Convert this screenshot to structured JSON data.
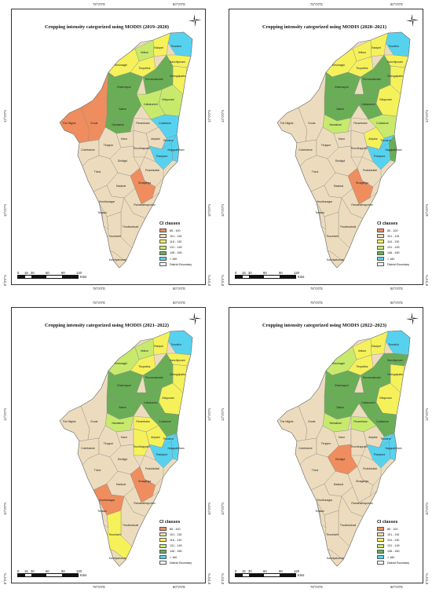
{
  "palette": {
    "c1": "#ef8d5e",
    "c2": "#ecdcbd",
    "c3": "#f5f15a",
    "c4": "#c7ea6d",
    "c5": "#6aad57",
    "c6": "#56d2ef",
    "boundary": "#8a8a8a"
  },
  "legend": {
    "title": "CI classes",
    "items": [
      {
        "label": "85 - 100",
        "color": "#ef8d5e"
      },
      {
        "label": "101 - 115",
        "color": "#ecdcbd"
      },
      {
        "label": "116 - 130",
        "color": "#f5f15a"
      },
      {
        "label": "131 - 145",
        "color": "#c7ea6d"
      },
      {
        "label": "146 - 160",
        "color": "#6aad57"
      },
      {
        "label": "> 160",
        "color": "#56d2ef"
      }
    ],
    "boundary_label": "District Boundary"
  },
  "scale": {
    "ticks": [
      "0",
      "15",
      "30",
      "60",
      "90",
      "120"
    ],
    "unit": "Kms"
  },
  "axes": {
    "lon": [
      "78°0'0\"E",
      "80°0'0\"E"
    ],
    "lat": [
      "12°0'0\"N",
      "10°0'0\"N",
      "8°0'0\"N"
    ]
  },
  "districts": [
    "Tiruvallur",
    "Vellore",
    "Ranipet",
    "Kanchipuram",
    "Krishnagiri",
    "Tirupathur",
    "Chengalpattu",
    "Dharmapuri",
    "Tiruvannamalai",
    "Villupuram",
    "Salem",
    "Kallakurichi",
    "Namakkal",
    "Cuddalore",
    "The Nilgiris",
    "Erode",
    "Perambalur",
    "Ariyalur",
    "Coimbatore",
    "Tiruppur",
    "Karur",
    "Tiruchirappalli",
    "Nagapattinam",
    "Thanjavur",
    "Tiruvarur",
    "Pudukkottai",
    "Dindigul",
    "Theni",
    "Madurai",
    "Sivaganga",
    "Virudhunagar",
    "Ramanathapuram",
    "Tenkasi",
    "Thoothukkudi",
    "Tirunelveli",
    "Kanniyakumari"
  ],
  "maps": [
    {
      "title": "Cropping intensity categorized using MODIS (2019–2020)",
      "classes": [
        6,
        4,
        3,
        3,
        3,
        3,
        3,
        5,
        5,
        4,
        5,
        4,
        5,
        6,
        1,
        1,
        2,
        2,
        2,
        2,
        2,
        2,
        6,
        6,
        6,
        2,
        2,
        2,
        2,
        1,
        2,
        2,
        2,
        2,
        2,
        2
      ]
    },
    {
      "title": "Cropping intensity categorized using MODIS (2020–2021)",
      "classes": [
        6,
        3,
        3,
        3,
        3,
        3,
        3,
        5,
        5,
        3,
        5,
        5,
        4,
        4,
        2,
        2,
        2,
        3,
        2,
        2,
        2,
        2,
        5,
        6,
        6,
        2,
        2,
        2,
        2,
        1,
        2,
        2,
        2,
        2,
        2,
        2
      ]
    },
    {
      "title": "Cropping intensity categorized using MODIS (2021–2022)",
      "classes": [
        6,
        4,
        3,
        3,
        4,
        3,
        3,
        5,
        5,
        3,
        5,
        5,
        4,
        5,
        2,
        2,
        3,
        3,
        2,
        2,
        2,
        3,
        6,
        6,
        6,
        2,
        2,
        2,
        2,
        1,
        1,
        2,
        2,
        2,
        3,
        2
      ]
    },
    {
      "title": "Cropping intensity categorized using MODIS (2022–2023)",
      "classes": [
        6,
        3,
        3,
        5,
        4,
        3,
        3,
        5,
        5,
        3,
        5,
        5,
        4,
        5,
        2,
        2,
        4,
        2,
        2,
        2,
        2,
        2,
        6,
        6,
        6,
        2,
        1,
        2,
        2,
        2,
        2,
        2,
        2,
        2,
        2,
        2
      ]
    }
  ]
}
